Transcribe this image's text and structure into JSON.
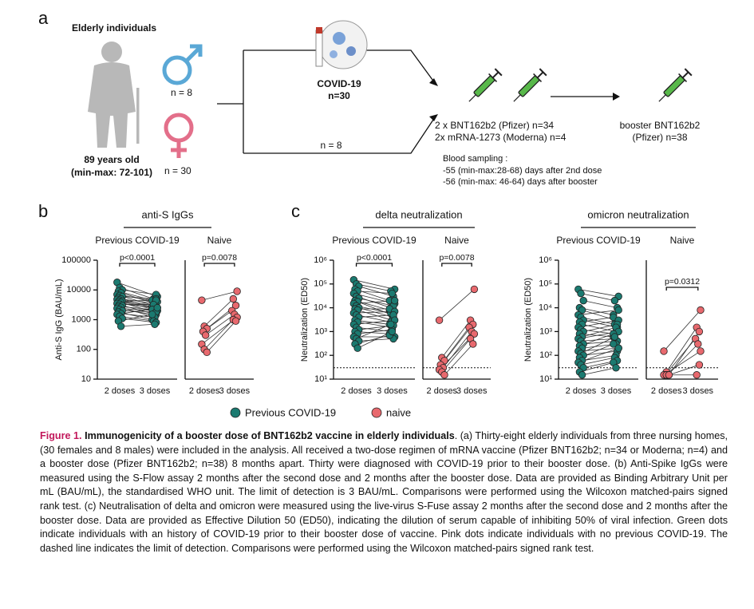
{
  "panel_a": {
    "label": "a",
    "population": "Elderly individuals",
    "age": "89 years old",
    "age_range": "(min-max: 72-101)",
    "male_n": "n = 8",
    "female_n": "n = 30",
    "covid_label": "COVID-19",
    "covid_n": "n=30",
    "naive_n": "n = 8",
    "primary": [
      "2 x BNT162b2 (Pfizer) n=34",
      "2x mRNA-1273 (Moderna) n=4"
    ],
    "booster": [
      "booster BNT162b2",
      "(Pfizer) n=38"
    ],
    "sampling": [
      "Blood sampling :",
      "-55 (min-max:28-68) days after 2nd dose",
      "-56 (min-max: 46-64) days after booster"
    ]
  },
  "chart_data": [
    {
      "type": "paired_dot",
      "panel": "b",
      "title": "anti-S IgGs",
      "ylabel": "Anti-S IgG (BAU/mL)",
      "log": true,
      "ylim": [
        10,
        100000
      ],
      "yticks": [
        10,
        100,
        1000,
        10000,
        100000
      ],
      "groups": [
        {
          "name": "Previous COVID-19",
          "color": "#1b7a70",
          "categories": [
            "2 doses",
            "3 doses"
          ],
          "pvalue": "p<0.0001",
          "values": [
            [
              18000,
              12000,
              10000,
              9000,
              8000,
              7000,
              6500,
              6000,
              5500,
              5000,
              4800,
              4500,
              4200,
              4000,
              3800,
              3500,
              3300,
              3000,
              2800,
              2600,
              2400,
              2200,
              2000,
              1800,
              1600,
              1500,
              1300,
              1100,
              900,
              600
            ],
            [
              6000,
              5000,
              7000,
              4500,
              3500,
              4000,
              3000,
              5000,
              2500,
              3500,
              2000,
              3000,
              4500,
              2800,
              1800,
              2500,
              3200,
              1500,
              2200,
              1200,
              2000,
              1500,
              1800,
              1000,
              1200,
              2500,
              900,
              800,
              1500,
              700
            ]
          ]
        },
        {
          "name": "Naive",
          "color": "#e8696e",
          "categories": [
            "2 doses",
            "3 doses"
          ],
          "pvalue": "p=0.0078",
          "values": [
            [
              4500,
              600,
              500,
              400,
              300,
              150,
              100,
              80
            ],
            [
              9000,
              5000,
              3000,
              2000,
              1500,
              1200,
              1000,
              900
            ]
          ]
        }
      ]
    },
    {
      "type": "paired_dot",
      "panel": "c",
      "title": "delta neutralization",
      "ylabel": "Neutralization (ED50)",
      "log": true,
      "ylim": [
        10,
        1000000
      ],
      "lod": 30,
      "yticks": [
        {
          "value": 10,
          "label": "10¹"
        },
        {
          "value": 100,
          "label": "10²"
        },
        {
          "value": 1000,
          "label": "10³"
        },
        {
          "value": 10000,
          "label": "10⁴"
        },
        {
          "value": 100000,
          "label": "10⁵"
        },
        {
          "value": 1000000,
          "label": "10⁶"
        }
      ],
      "groups": [
        {
          "name": "Previous COVID-19",
          "color": "#1b7a70",
          "categories": [
            "2 doses",
            "3 doses"
          ],
          "pvalue": "p<0.0001",
          "values": [
            [
              150000,
              100000,
              80000,
              60000,
              50000,
              40000,
              30000,
              25000,
              20000,
              18000,
              15000,
              12000,
              10000,
              9000,
              8000,
              6000,
              5000,
              4000,
              3000,
              2500,
              2000,
              1500,
              1200,
              1000,
              800,
              600,
              500,
              400,
              300,
              200
            ],
            [
              60000,
              50000,
              30000,
              20000,
              40000,
              15000,
              10000,
              12000,
              8000,
              5000,
              20000,
              6000,
              4000,
              9000,
              3000,
              7000,
              2500,
              5000,
              2000,
              1500,
              3000,
              1000,
              1800,
              800,
              1200,
              600,
              2000,
              500,
              700,
              1000
            ]
          ]
        },
        {
          "name": "Naive",
          "color": "#e8696e",
          "categories": [
            "2 doses",
            "3 doses"
          ],
          "pvalue": "p=0.0078",
          "values": [
            [
              3000,
              80,
              60,
              40,
              30,
              25,
              20,
              15
            ],
            [
              60000,
              3000,
              2000,
              1500,
              1000,
              800,
              500,
              300
            ]
          ]
        }
      ]
    },
    {
      "type": "paired_dot",
      "title": "omicron neutralization",
      "ylabel": "Neutralization (ED50)",
      "log": true,
      "ylim": [
        10,
        1000000
      ],
      "lod": 30,
      "yticks": [
        {
          "value": 10,
          "label": "10¹"
        },
        {
          "value": 100,
          "label": "10²"
        },
        {
          "value": 1000,
          "label": "10³"
        },
        {
          "value": 10000,
          "label": "10⁴"
        },
        {
          "value": 100000,
          "label": "10⁵"
        },
        {
          "value": 1000000,
          "label": "10⁶"
        }
      ],
      "groups": [
        {
          "name": "Previous COVID-19",
          "color": "#1b7a70",
          "categories": [
            "2 doses",
            "3 doses"
          ],
          "values": [
            [
              60000,
              40000,
              20000,
              10000,
              8000,
              5000,
              4000,
              3000,
              2500,
              2000,
              1500,
              1200,
              1000,
              800,
              600,
              500,
              400,
              300,
              250,
              200,
              150,
              120,
              100,
              80,
              60,
              50,
              40,
              30,
              20,
              15
            ],
            [
              30000,
              20000,
              10000,
              5000,
              3000,
              8000,
              2000,
              1500,
              4000,
              1000,
              3000,
              800,
              2000,
              600,
              1500,
              1000,
              500,
              400,
              800,
              300,
              200,
              600,
              150,
              300,
              100,
              200,
              80,
              60,
              50,
              30
            ]
          ]
        },
        {
          "name": "Naive",
          "color": "#e8696e",
          "categories": [
            "2 doses",
            "3 doses"
          ],
          "pvalue": "p=0.0312",
          "values": [
            [
              150,
              20,
              15,
              15,
              15,
              15,
              15,
              15
            ],
            [
              8000,
              1500,
              1000,
              500,
              300,
              150,
              15,
              40
            ]
          ]
        }
      ]
    }
  ],
  "legend": [
    {
      "name": "Previous COVID-19",
      "color": "#1b7a70"
    },
    {
      "name": "naive",
      "color": "#e8696e"
    }
  ],
  "caption": {
    "label": "Figure 1.",
    "title": "Immunogenicity of a booster dose of BNT162b2 vaccine in elderly individuals",
    "text": ". (a) Thirty-eight elderly individuals from three nursing homes, (30 females and 8 males) were included in the analysis. All received a two-dose regimen of mRNA vaccine (Pfizer BNT162b2; n=34 or Moderna; n=4) and a booster dose (Pfizer BNT162b2; n=38) 8 months apart. Thirty were diagnosed with COVID-19 prior to their booster dose. (b) Anti-Spike IgGs were measured using the S-Flow assay 2 months after the second dose and 2 months after the booster dose. Data are provided as Binding Arbitrary Unit per mL (BAU/mL), the standardised WHO unit. The limit of detection is 3 BAU/mL. Comparisons were performed using the Wilcoxon matched-pairs signed rank test. (c) Neutralisation of delta and omicron were measured using the live-virus S-Fuse assay 2 months after the second dose and 2 months after the booster dose. Data are provided as Effective Dilution 50 (ED50), indicating the dilution of serum capable of inhibiting 50% of viral infection. Green dots indicate individuals with an history of COVID-19 prior to their booster dose of vaccine. Pink dots indicate individuals with no previous COVID-19. The dashed line indicates the limit of detection. Comparisons were performed using the Wilcoxon matched-pairs signed rank test."
  }
}
